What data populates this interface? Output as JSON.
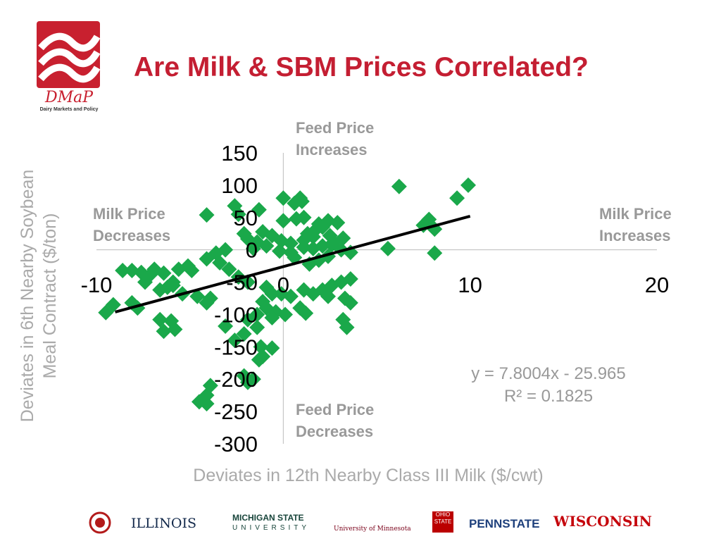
{
  "title": "Are Milk & SBM Prices Correlated?",
  "logo": {
    "name": "DMaP",
    "subtitle": "Dairy Markets and Policy",
    "color": "#c8202f"
  },
  "colors": {
    "title": "#c41e32",
    "points": "#1aa84a",
    "trendline": "#000000",
    "labels": "#999999"
  },
  "quadrant_labels": {
    "top": [
      "Feed Price",
      "Increases"
    ],
    "bottom": [
      "Feed Price",
      "Decreases"
    ],
    "left": [
      "Milk Price",
      "Decreases"
    ],
    "right": [
      "Milk Price",
      "Increases"
    ]
  },
  "footer": {
    "institutions": [
      "ILLINOIS",
      "MICHIGAN STATE",
      "UNIVERSITY",
      "University of Minnesota",
      "OHIO STATE",
      "PENNSTATE",
      "WISCONSIN"
    ]
  },
  "chart_data": {
    "type": "scatter",
    "title": "",
    "xlabel": "Deviates in 12th Nearby Class III Milk ($/cwt)",
    "ylabel_lines": [
      "Deviates in 6th Nearby Soybean",
      "Meal Contract ($/ton)"
    ],
    "xlim": [
      -10,
      20
    ],
    "ylim": [
      -300,
      150
    ],
    "x_ticks": [
      -10,
      0,
      10,
      20
    ],
    "y_ticks": [
      150,
      100,
      50,
      0,
      -50,
      -100,
      -150,
      -200,
      -250,
      -300
    ],
    "grid": false,
    "marker": "diamond",
    "trendline": {
      "equation": "y = 7.8004x - 25.965",
      "r2": "R² = 0.1825",
      "slope": 7.8004,
      "intercept": -25.965,
      "x_range": [
        -9,
        10
      ]
    },
    "points": [
      [
        6.2,
        98
      ],
      [
        9.9,
        100
      ],
      [
        9.3,
        80
      ],
      [
        7.8,
        47
      ],
      [
        7.5,
        38
      ],
      [
        8.1,
        32
      ],
      [
        5.6,
        2
      ],
      [
        8.1,
        -5
      ],
      [
        0,
        80
      ],
      [
        0.6,
        72
      ],
      [
        0.9,
        80
      ],
      [
        1,
        75
      ],
      [
        -2.6,
        68
      ],
      [
        -2.4,
        55
      ],
      [
        -1.3,
        62
      ],
      [
        -4.1,
        54
      ],
      [
        0,
        45
      ],
      [
        0.7,
        48
      ],
      [
        1.1,
        50
      ],
      [
        1.9,
        40
      ],
      [
        1.7,
        30
      ],
      [
        1.3,
        25
      ],
      [
        2.1,
        35
      ],
      [
        2.4,
        45
      ],
      [
        2.9,
        42
      ],
      [
        1.6,
        20
      ],
      [
        2.5,
        22
      ],
      [
        3.2,
        18
      ],
      [
        2.7,
        12
      ],
      [
        1.1,
        15
      ],
      [
        0.4,
        10
      ],
      [
        -1.1,
        28
      ],
      [
        -0.6,
        22
      ],
      [
        -0.1,
        14
      ],
      [
        -0.9,
        6
      ],
      [
        -1.4,
        12
      ],
      [
        -1.9,
        17
      ],
      [
        -2.1,
        25
      ],
      [
        -1.6,
        2
      ],
      [
        -0.2,
        -2
      ],
      [
        0.4,
        -4
      ],
      [
        1.1,
        4
      ],
      [
        1.6,
        2
      ],
      [
        2.1,
        6
      ],
      [
        2.6,
        8
      ],
      [
        3.1,
        0
      ],
      [
        3.6,
        -4
      ],
      [
        2.4,
        -10
      ],
      [
        1.9,
        -16
      ],
      [
        1.4,
        -22
      ],
      [
        0.6,
        -12
      ],
      [
        -3.6,
        -5
      ],
      [
        -3.1,
        0
      ],
      [
        -4.1,
        -14
      ],
      [
        -3.4,
        -20
      ],
      [
        -2.9,
        -30
      ],
      [
        -2.4,
        -42
      ],
      [
        -1.9,
        -50
      ],
      [
        -5.1,
        -25
      ],
      [
        -4.9,
        -32
      ],
      [
        -5.6,
        -30
      ],
      [
        -7.1,
        -38
      ],
      [
        -6.9,
        -30
      ],
      [
        -6.4,
        -36
      ],
      [
        -7.6,
        -35
      ],
      [
        -8.1,
        -32
      ],
      [
        -8.6,
        -32
      ],
      [
        -5.9,
        -50
      ],
      [
        -7.4,
        -50
      ],
      [
        -6.2,
        -58
      ],
      [
        -6.6,
        -62
      ],
      [
        -5.4,
        -68
      ],
      [
        -4.6,
        -72
      ],
      [
        -3.9,
        -75
      ],
      [
        -4.1,
        -82
      ],
      [
        -8.1,
        -82
      ],
      [
        -0.9,
        -58
      ],
      [
        -0.6,
        -68
      ],
      [
        -0.1,
        -68
      ],
      [
        0.4,
        -72
      ],
      [
        -1.1,
        -80
      ],
      [
        -0.9,
        -90
      ],
      [
        -0.4,
        -96
      ],
      [
        0.1,
        -100
      ],
      [
        -0.6,
        -105
      ],
      [
        0.9,
        -90
      ],
      [
        -1.4,
        -100
      ],
      [
        -1.9,
        -108
      ],
      [
        1.1,
        -62
      ],
      [
        1.6,
        -68
      ],
      [
        2.1,
        -62
      ],
      [
        2.6,
        -55
      ],
      [
        3.1,
        -50
      ],
      [
        3.6,
        -45
      ],
      [
        2.4,
        -72
      ],
      [
        3.3,
        -75
      ],
      [
        3.6,
        -82
      ],
      [
        1.2,
        -98
      ],
      [
        3.2,
        -108
      ],
      [
        3.4,
        -120
      ],
      [
        -1.4,
        -120
      ],
      [
        -2.1,
        -130
      ],
      [
        -3.1,
        -118
      ],
      [
        -2.6,
        -140
      ],
      [
        -1.2,
        -150
      ],
      [
        -0.6,
        -152
      ],
      [
        -1.1,
        -165
      ],
      [
        -1.3,
        -170
      ],
      [
        -2.1,
        -195
      ],
      [
        -1.6,
        -200
      ],
      [
        -1.9,
        -205
      ],
      [
        -3.9,
        -210
      ],
      [
        -4.1,
        -225
      ],
      [
        -4.1,
        -238
      ],
      [
        -4.5,
        -235
      ],
      [
        -5.9,
        -55
      ],
      [
        -7.8,
        -90
      ],
      [
        -9.1,
        -85
      ],
      [
        -9.5,
        -97
      ],
      [
        -6.6,
        -108
      ],
      [
        -6,
        -110
      ],
      [
        -5.8,
        -123
      ],
      [
        -6.4,
        -126
      ]
    ]
  }
}
